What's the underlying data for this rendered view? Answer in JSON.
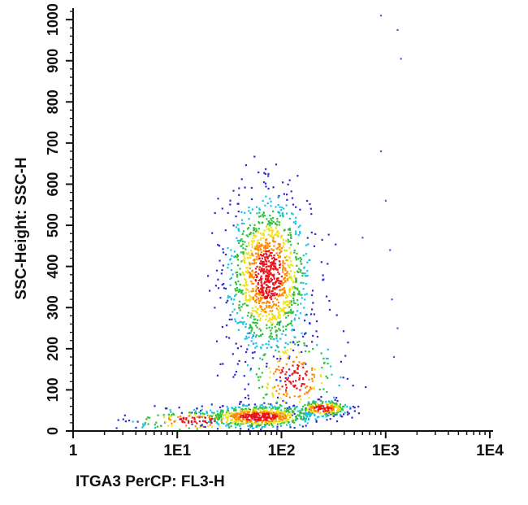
{
  "chart_data": {
    "type": "scatter",
    "subtype": "flow-cytometry density dot plot",
    "xlabel": "ITGA3 PerCP: FL3-H",
    "ylabel": "SSC-Height: SSC-H",
    "x_scale": "log",
    "xlim": [
      1,
      10000
    ],
    "ylim": [
      0,
      1024
    ],
    "x_ticks": [
      {
        "value": 1,
        "label": "1"
      },
      {
        "value": 10,
        "label": "1E1"
      },
      {
        "value": 100,
        "label": "1E2"
      },
      {
        "value": 1000,
        "label": "1E3"
      },
      {
        "value": 10000,
        "label": "1E4"
      }
    ],
    "y_ticks": [
      {
        "value": 0,
        "label": "0"
      },
      {
        "value": 100,
        "label": "100"
      },
      {
        "value": 200,
        "label": "200"
      },
      {
        "value": 300,
        "label": "300"
      },
      {
        "value": 400,
        "label": "400"
      },
      {
        "value": 500,
        "label": "500"
      },
      {
        "value": 600,
        "label": "600"
      },
      {
        "value": 700,
        "label": "700"
      },
      {
        "value": 800,
        "label": "800"
      },
      {
        "value": 900,
        "label": "900"
      },
      {
        "value": 1000,
        "label": "1000"
      }
    ],
    "grid": false,
    "legend": "none",
    "density_colors": [
      "#2a2ad8",
      "#19c3e6",
      "#2ec13a",
      "#f0e21a",
      "#ff8a00",
      "#e8141a"
    ],
    "populations": [
      {
        "x_center": 75,
        "y_center": 380,
        "x_spread_log": 0.2,
        "y_spread": 95,
        "count": 1300
      },
      {
        "x_center": 60,
        "y_center": 35,
        "x_spread_log": 0.28,
        "y_spread": 14,
        "count": 650
      },
      {
        "x_center": 250,
        "y_center": 55,
        "x_spread_log": 0.13,
        "y_spread": 10,
        "count": 230
      },
      {
        "x_center": 15,
        "y_center": 25,
        "x_spread_log": 0.3,
        "y_spread": 14,
        "count": 150
      },
      {
        "x_center": 130,
        "y_center": 130,
        "x_spread_log": 0.22,
        "y_spread": 55,
        "count": 260
      }
    ],
    "outliers": [
      {
        "x": 1300,
        "y": 975
      },
      {
        "x": 900,
        "y": 1010
      },
      {
        "x": 1400,
        "y": 905
      },
      {
        "x": 900,
        "y": 680
      },
      {
        "x": 1000,
        "y": 560
      },
      {
        "x": 600,
        "y": 470
      },
      {
        "x": 1100,
        "y": 440
      },
      {
        "x": 1150,
        "y": 320
      },
      {
        "x": 1300,
        "y": 250
      },
      {
        "x": 1200,
        "y": 180
      }
    ]
  }
}
